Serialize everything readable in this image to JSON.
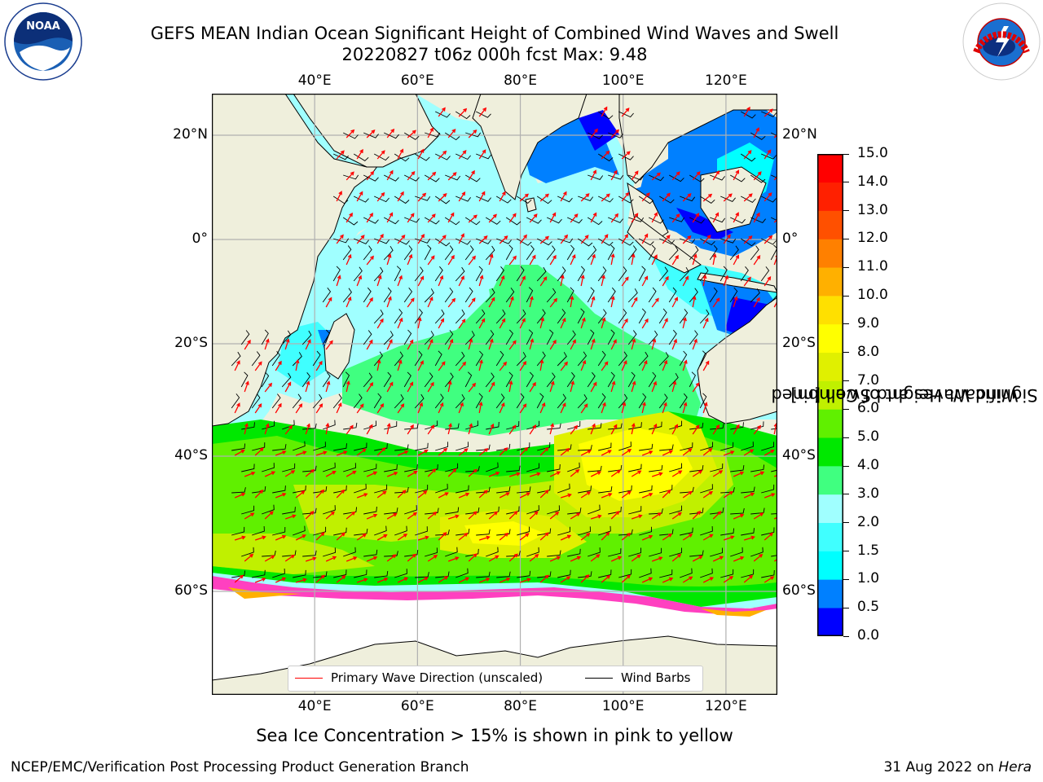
{
  "header": {
    "title_line1": "GEFS MEAN Indian Ocean Significant Height of Combined Wind Waves and Swell",
    "title_line2": "20220827 t06z 000h fcst   Max: 9.48"
  },
  "logos": {
    "left": {
      "text": "NOAA",
      "name": "noaa-logo"
    },
    "right": {
      "text": "NATIONAL WEATHER SERVICE",
      "name": "nws-logo"
    }
  },
  "map": {
    "lon_ticks": [
      "40°E",
      "60°E",
      "80°E",
      "100°E",
      "120°E"
    ],
    "lat_ticks": [
      "20°N",
      "0°",
      "20°S",
      "40°S",
      "60°S"
    ],
    "lon_values": [
      40,
      60,
      80,
      100,
      120
    ],
    "lat_values": [
      20,
      0,
      -20,
      -40,
      -60
    ],
    "extent": {
      "lon": [
        20,
        130
      ],
      "lat": [
        -75,
        28
      ]
    },
    "land_color": "#efefdc"
  },
  "legend": {
    "wave_direction": "Primary Wave Direction (unscaled)",
    "wind_barbs": "Wind Barbs",
    "wave_color": "#ff0000",
    "barb_color": "#000000"
  },
  "colorbar": {
    "title_line1": "Significant Height of Combined",
    "title_line2": "Wind Waves and Swell [m]",
    "levels": [
      "0.0",
      "0.5",
      "1.0",
      "1.5",
      "2.0",
      "3.0",
      "4.0",
      "5.0",
      "6.0",
      "7.0",
      "8.0",
      "9.0",
      "10.0",
      "11.0",
      "12.0",
      "13.0",
      "14.0",
      "15.0"
    ],
    "colors": [
      "#0000ff",
      "#0080ff",
      "#00ffff",
      "#40ffff",
      "#a0ffff",
      "#40ff80",
      "#00e800",
      "#60f000",
      "#c0f000",
      "#e0f000",
      "#ffff00",
      "#ffe000",
      "#ffb000",
      "#ff8000",
      "#ff5000",
      "#ff2000",
      "#ff0000"
    ]
  },
  "note": "Sea Ice Concentration > 15% is shown in pink to yellow",
  "footer": {
    "left": "NCEP/EMC/Verification Post Processing Product Generation Branch",
    "right_prefix": "31 Aug 2022 on ",
    "right_host": "Hera"
  }
}
